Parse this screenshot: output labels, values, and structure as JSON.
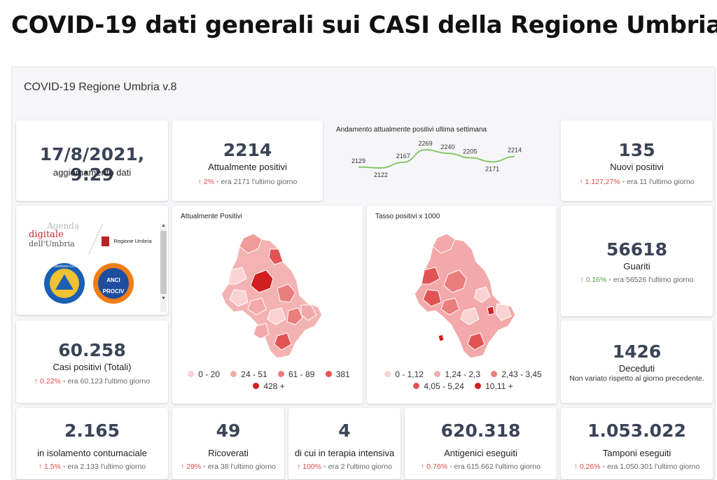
{
  "page": {
    "title": "COVID-19 dati generali sui CASI della Regione Umbria"
  },
  "report": {
    "title": "COVID-19 Regione Umbria v.8"
  },
  "update": {
    "datetime": "17/8/2021, 9:29",
    "label": "aggiornamento dati"
  },
  "attualmente_positivi": {
    "value": "2214",
    "label": "Attualmente positivi",
    "pct": "2%",
    "prev": "era 2171 l'ultimo giorno"
  },
  "trend": {
    "title": "Andamento attualmente positivi ultima settimana",
    "line_color": "#8ac76a",
    "labels": [
      "2129",
      "2122",
      "2167",
      "2269",
      "2240",
      "2205",
      "2171",
      "2214"
    ],
    "values": [
      2129,
      2122,
      2167,
      2269,
      2240,
      2205,
      2171,
      2214
    ]
  },
  "nuovi_positivi": {
    "value": "135",
    "label": "Nuovi positivi",
    "pct": "1.127,27%",
    "prev": "era 11 l'ultimo giorno"
  },
  "logos": {
    "agenda_line1": "Agenda",
    "agenda_line2": "digitale",
    "agenda_line3": "dell'Umbria",
    "regione": "Regione Umbria",
    "protezione": "Protezione Civile",
    "anci": "ANCI",
    "prociv": "PROCIV"
  },
  "map1": {
    "title": "Attualmente Positivi",
    "legend": [
      "0 - 20",
      "24 - 51",
      "61 - 89",
      "381",
      "428 +"
    ]
  },
  "map2": {
    "title": "Tasso positivi x 1000",
    "legend": [
      "0 - 1,12",
      "1,24 - 2,3",
      "2,43 - 3,45",
      "4,05 - 5,24",
      "10,11 +"
    ]
  },
  "legend_colors": [
    "#f9d2d2",
    "#f3a9a9",
    "#ea7d7d",
    "#e25454",
    "#d21f1f"
  ],
  "guariti": {
    "value": "56618",
    "label": "Guariti",
    "pct": "0.16%",
    "prev": "era 56526 l'ultimo giorno"
  },
  "casi_totali": {
    "value": "60.258",
    "label": "Casi positivi (Totali)",
    "pct": "0.22%",
    "prev": "era 60.123 l'ultimo giorno"
  },
  "deceduti": {
    "value": "1426",
    "label": "Deceduti",
    "note": "Non variato rispetto al giorno precedente."
  },
  "isolamento": {
    "value": "2.165",
    "label": "in isolamento contumaciale",
    "pct": "1.5%",
    "prev": "era 2.133 l'ultimo giorno"
  },
  "ricoverati": {
    "value": "49",
    "label": "Ricoverati",
    "pct": "29%",
    "prev": "era 38 l'ultimo giorno"
  },
  "terapia": {
    "value": "4",
    "label": "di cui in terapia intensiva",
    "pct": "100%",
    "prev": "era 2 l'ultimo giorno"
  },
  "antigenici": {
    "value": "620.318",
    "label": "Antigenici eseguiti",
    "pct": "0.76%",
    "prev": "era 615.662 l'ultimo giorno"
  },
  "tamponi": {
    "value": "1.053.022",
    "label": "Tamponi eseguiti",
    "pct": "0.26%",
    "prev": "era 1.050.301 l'ultimo giorno"
  }
}
